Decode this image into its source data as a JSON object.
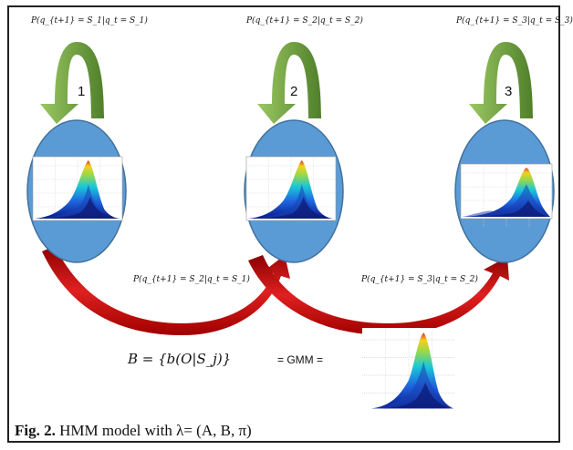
{
  "self_transitions": [
    {
      "label": "P(q_{t+1} = S_1|q_t = S_1)",
      "state": "1"
    },
    {
      "label": "P(q_{t+1} = S_2|q_t = S_2)",
      "state": "2"
    },
    {
      "label": "P(q_{t+1} = S_3|q_t = S_3)",
      "state": "3"
    }
  ],
  "forward_transitions": [
    {
      "label": "P(q_{t+1} = S_2|q_t = S_1)"
    },
    {
      "label": "P(q_{t+1} = S_3|q_t = S_2)"
    }
  ],
  "emission": {
    "equation": "B = {b(O|S_j)}",
    "gmm_label": "= GMM ="
  },
  "caption": {
    "prefix": "Fig. 2.",
    "text": "HMM model with λ= (A, B, π)"
  },
  "colors": {
    "state_fill": "#5b9bd5",
    "self_arrow": "#6fa53a",
    "forward_arrow": "#cc1010"
  }
}
